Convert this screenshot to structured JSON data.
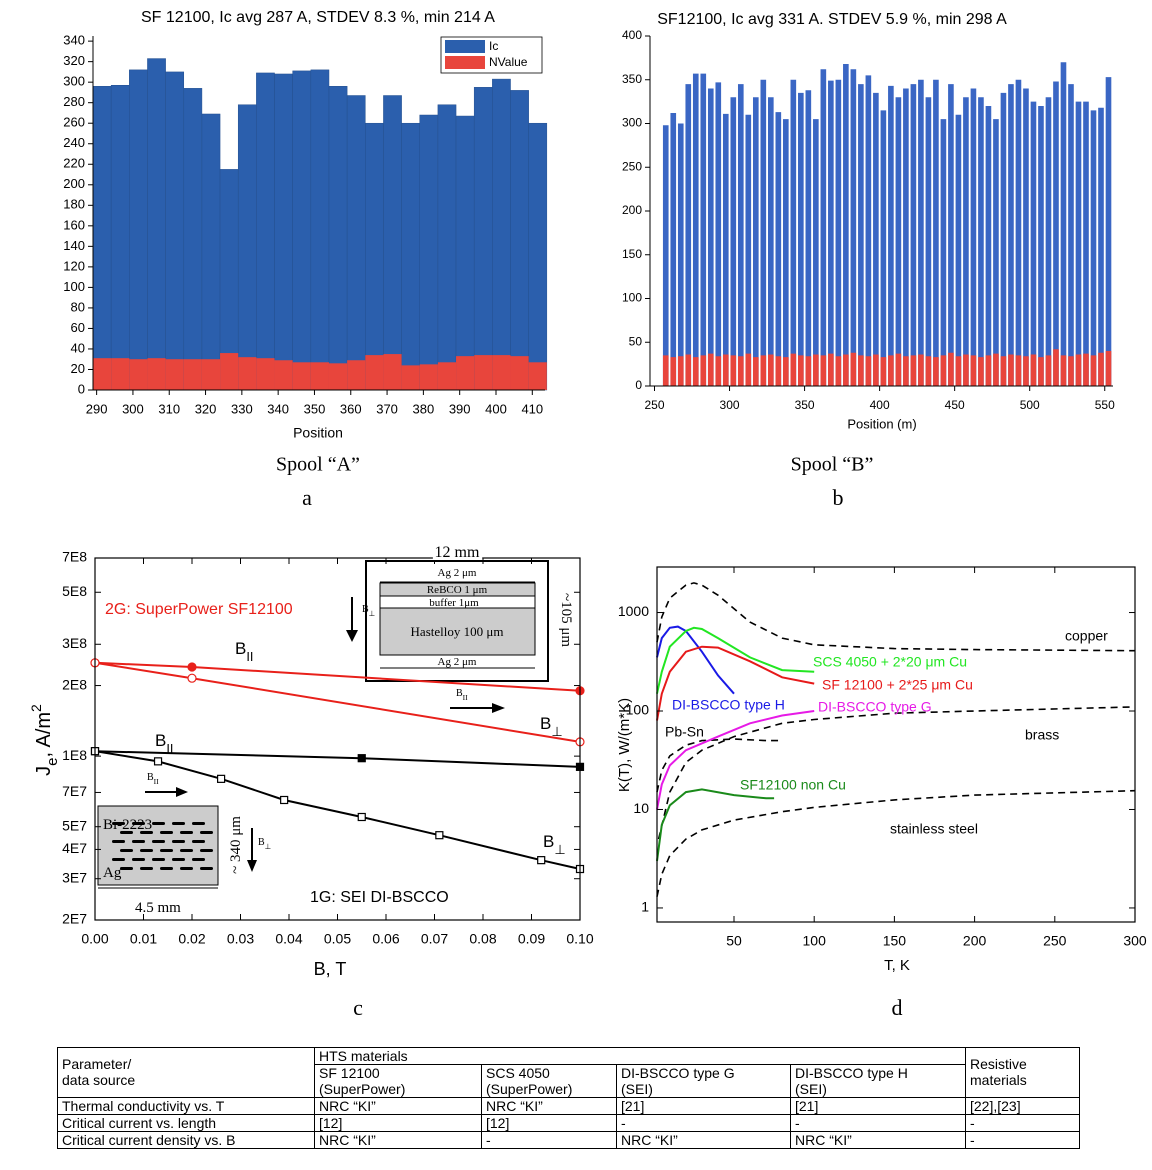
{
  "chart_data": [
    {
      "type": "bar",
      "title": "SF 12100, Ic avg 287 A, STDEV 8.3 %, min 214 A",
      "xlabel": "Position",
      "caption": "Spool “A”",
      "panel": "a",
      "x": [
        291.5,
        296.5,
        301.5,
        306.5,
        311.5,
        316.5,
        321.5,
        326.5,
        331.5,
        336.5,
        341.5,
        346.5,
        351.5,
        356.5,
        361.5,
        366.5,
        371.5,
        376.5,
        381.5,
        386.5,
        391.5,
        396.5,
        401.5,
        406.5,
        411.5
      ],
      "series": [
        {
          "name": "Ic",
          "color": "#2b5fad",
          "values": [
            296,
            297,
            312,
            323,
            310,
            294,
            269,
            215,
            278,
            309,
            308,
            311,
            312,
            296,
            287,
            260,
            287,
            260,
            268,
            278,
            267,
            295,
            303,
            292,
            260
          ]
        },
        {
          "name": "NValue",
          "color": "#e8453c",
          "values": [
            31,
            31,
            30,
            31,
            30,
            30,
            30,
            36,
            32,
            31,
            29,
            27,
            27,
            26,
            29,
            34,
            35,
            24,
            25,
            27,
            33,
            34,
            34,
            33,
            27
          ]
        }
      ],
      "xlim": [
        289,
        413.5
      ],
      "ylim": [
        0,
        345
      ],
      "xticks": [
        290,
        300,
        310,
        320,
        330,
        340,
        350,
        360,
        370,
        380,
        390,
        400,
        410
      ],
      "yticks": [
        0,
        20,
        40,
        60,
        80,
        100,
        120,
        140,
        160,
        180,
        200,
        220,
        240,
        260,
        280,
        300,
        320,
        340
      ],
      "legend": "upper right"
    },
    {
      "type": "bar",
      "title": "SF12100, Ic avg 331 A. STDEV 5.9 %, min 298 A",
      "xlabel": "Position (m)",
      "caption": "Spool “B”",
      "panel": "b",
      "x": [
        257.5,
        262.5,
        267.5,
        272.5,
        277.5,
        282.5,
        287.5,
        292.5,
        297.5,
        302.5,
        307.5,
        312.5,
        317.5,
        322.5,
        327.5,
        332.5,
        337.5,
        342.5,
        347.5,
        352.5,
        357.5,
        362.5,
        367.5,
        372.5,
        377.5,
        382.5,
        387.5,
        392.5,
        397.5,
        402.5,
        407.5,
        412.5,
        417.5,
        422.5,
        427.5,
        432.5,
        437.5,
        442.5,
        447.5,
        452.5,
        457.5,
        462.5,
        467.5,
        472.5,
        477.5,
        482.5,
        487.5,
        492.5,
        497.5,
        502.5,
        507.5,
        512.5,
        517.5,
        522.5,
        527.5,
        532.5,
        537.5,
        542.5,
        547.5,
        552.5
      ],
      "series": [
        {
          "color": "#3a66c4",
          "values": [
            298,
            312,
            300,
            345,
            357,
            357,
            340,
            347,
            311,
            330,
            345,
            310,
            330,
            350,
            330,
            313,
            305,
            350,
            335,
            338,
            305,
            362,
            349,
            350,
            368,
            362,
            345,
            355,
            335,
            315,
            343,
            330,
            340,
            345,
            350,
            330,
            350,
            305,
            345,
            310,
            330,
            340,
            330,
            320,
            305,
            335,
            345,
            350,
            340,
            325,
            320,
            330,
            348,
            370,
            345,
            325,
            325,
            315,
            318,
            353
          ]
        },
        {
          "color": "#e8453c",
          "values": [
            35,
            33,
            34,
            36,
            33,
            35,
            37,
            34,
            36,
            35,
            34,
            37,
            33,
            35,
            36,
            34,
            33,
            37,
            35,
            34,
            36,
            35,
            37,
            34,
            36,
            38,
            35,
            34,
            36,
            33,
            35,
            37,
            34,
            35,
            36,
            34,
            33,
            35,
            38,
            34,
            36,
            35,
            33,
            35,
            37,
            34,
            36,
            35,
            34,
            36,
            33,
            35,
            42,
            35,
            34,
            36,
            37,
            35,
            38,
            40
          ]
        }
      ],
      "xlim": [
        247,
        555.5
      ],
      "ylim": [
        0,
        400
      ],
      "xticks": [
        250,
        300,
        350,
        400,
        450,
        500,
        550
      ],
      "yticks": [
        0,
        50,
        100,
        150,
        200,
        250,
        300,
        350,
        400
      ]
    },
    {
      "type": "line",
      "xlabel": "B, T",
      "ylabel": {
        "text": "J",
        "sub": "e",
        "text2": ", A/m",
        "sup": "2"
      },
      "panel": "c",
      "ylog": true,
      "xlim": [
        0,
        0.1
      ],
      "ylim": [
        20000000,
        700000000
      ],
      "xticks": [
        {
          "value": 0,
          "label": "0.00"
        },
        {
          "value": 0.01,
          "label": "0.01"
        },
        {
          "value": 0.02,
          "label": "0.02"
        },
        {
          "value": 0.03,
          "label": "0.03"
        },
        {
          "value": 0.04,
          "label": "0.04"
        },
        {
          "value": 0.05,
          "label": "0.05"
        },
        {
          "value": 0.06,
          "label": "0.06"
        },
        {
          "value": 0.07,
          "label": "0.07"
        },
        {
          "value": 0.08,
          "label": "0.08"
        },
        {
          "value": 0.09,
          "label": "0.09"
        },
        {
          "value": 0.1,
          "label": "0.10"
        }
      ],
      "yticks": [
        {
          "value": 700000000,
          "label": "7E8"
        },
        {
          "value": 500000000,
          "label": "5E8"
        },
        {
          "value": 300000000,
          "label": "3E8"
        },
        {
          "value": 200000000,
          "label": "2E8"
        },
        {
          "value": 100000000,
          "label": "1E8"
        },
        {
          "value": 70000000,
          "label": "7E7"
        },
        {
          "value": 50000000,
          "label": "5E7"
        },
        {
          "value": 40000000,
          "label": "4E7"
        },
        {
          "value": 30000000,
          "label": "3E7"
        },
        {
          "value": 20000000,
          "label": "2E7"
        }
      ],
      "series": [
        {
          "color": "#e8201a",
          "marker": "circle",
          "marker_fill": "filled",
          "x": [
            0,
            0.02,
            0.1
          ],
          "values": [
            250000000,
            240000000,
            190000000
          ]
        },
        {
          "color": "#e8201a",
          "marker": "circle",
          "marker_fill": "open",
          "x": [
            0,
            0.02,
            0.1
          ],
          "values": [
            250000000,
            215000000,
            115000000
          ]
        },
        {
          "color": "#000000",
          "marker": "square",
          "marker_fill": "filled",
          "x": [
            0,
            0.055,
            0.1
          ],
          "values": [
            105000000,
            98000000,
            90000000
          ]
        },
        {
          "color": "#000000",
          "marker": "square",
          "marker_fill": "open",
          "x": [
            0,
            0.013,
            0.026,
            0.039,
            0.055,
            0.071,
            0.092,
            0.1
          ],
          "values": [
            105000000,
            95000000,
            80000000,
            65000000,
            55000000,
            46000000,
            36000000,
            33000000
          ]
        }
      ],
      "annotations": [
        {
          "text": "2G: SuperPower SF12100",
          "color": "#e8201a"
        },
        {
          "text": "B",
          "sub": "II"
        },
        {
          "text": "B",
          "sub": "⊥"
        },
        {
          "text": "B",
          "sub": "II"
        },
        {
          "text": "B",
          "sub": "⊥"
        },
        {
          "text": "1G: SEI  DI-BSCCO"
        },
        {
          "text": "12 mm"
        },
        {
          "text": "Ag 2 μm"
        },
        {
          "text": "ReBCO 1 μm"
        },
        {
          "text": "buffer  1μm"
        },
        {
          "text": "Hastelloy 100 μm"
        },
        {
          "text": "Ag 2 μm"
        },
        {
          "text": "~105 μm"
        },
        {
          "text": "B",
          "sub": "⊥"
        },
        {
          "text": "B",
          "sub": "II"
        },
        {
          "text": "Bi-2223"
        },
        {
          "text": "Ag"
        },
        {
          "text": "4.5 mm"
        },
        {
          "text": "~ 340 μm"
        },
        {
          "text": "B",
          "sub": "⊥"
        },
        {
          "text": "B",
          "sub": "II"
        }
      ]
    },
    {
      "type": "line",
      "xlabel": "T, K",
      "ylabel": "K(T), W/(m*K)",
      "panel": "d",
      "ylog": true,
      "xlim": [
        2,
        300
      ],
      "ylim": [
        0.72,
        2900
      ],
      "xticks": [
        50,
        100,
        150,
        200,
        250,
        300
      ],
      "yticks": [
        1,
        10,
        100,
        1000
      ],
      "series": [
        {
          "name": "copper",
          "color": "#000000",
          "linestyle": "dashed",
          "x": [
            2,
            5,
            10,
            20,
            25,
            30,
            40,
            60,
            80,
            100,
            150,
            200,
            300
          ],
          "values": [
            500,
            900,
            1400,
            1900,
            2000,
            1900,
            1500,
            800,
            550,
            470,
            430,
            420,
            410
          ]
        },
        {
          "name": "brass",
          "color": "#000000",
          "linestyle": "dashed",
          "x": [
            3,
            10,
            20,
            30,
            50,
            80,
            100,
            150,
            200,
            300
          ],
          "values": [
            5,
            15,
            30,
            40,
            55,
            75,
            82,
            95,
            100,
            110
          ]
        },
        {
          "name": "stainless steel",
          "color": "#000000",
          "linestyle": "dashed",
          "x": [
            2,
            5,
            10,
            20,
            30,
            50,
            80,
            100,
            150,
            200,
            300
          ],
          "values": [
            1.3,
            2.2,
            3.4,
            5,
            6.2,
            7.8,
            9.5,
            10.5,
            12.5,
            14,
            15.5
          ]
        },
        {
          "name": "Pb-Sn",
          "color": "#000000",
          "linestyle": "dashed",
          "x": [
            2,
            5,
            10,
            20,
            30,
            50,
            70,
            80
          ],
          "values": [
            15,
            25,
            35,
            45,
            50,
            52,
            50,
            50
          ]
        },
        {
          "name": "DI-BSCCO type H",
          "color": "#1a1ae6",
          "linestyle": "solid",
          "x": [
            2,
            5,
            10,
            15,
            20,
            30,
            40,
            50
          ],
          "values": [
            350,
            550,
            700,
            720,
            650,
            400,
            230,
            150
          ]
        },
        {
          "name": "SCS 4050 + 2*20 μm Cu",
          "color": "#22e622",
          "linestyle": "solid",
          "x": [
            2,
            5,
            10,
            20,
            25,
            30,
            40,
            60,
            80,
            100
          ],
          "values": [
            150,
            250,
            450,
            650,
            700,
            680,
            550,
            350,
            260,
            250
          ]
        },
        {
          "name": "SF 12100 + 2*25 μm Cu",
          "color": "#e61a1a",
          "linestyle": "solid",
          "x": [
            2,
            5,
            10,
            20,
            30,
            40,
            60,
            80,
            100
          ],
          "values": [
            80,
            150,
            250,
            400,
            450,
            440,
            320,
            220,
            190
          ]
        },
        {
          "name": "DI-BSCCO type G",
          "color": "#e61ae6",
          "linestyle": "solid",
          "x": [
            2,
            5,
            10,
            20,
            40,
            60,
            80,
            100
          ],
          "values": [
            10,
            18,
            28,
            40,
            55,
            75,
            90,
            100
          ]
        },
        {
          "name": "SF12100 non Cu",
          "color": "#1a8a1a",
          "linestyle": "solid",
          "x": [
            2,
            5,
            10,
            20,
            30,
            50,
            70,
            75
          ],
          "values": [
            3,
            7,
            11,
            15,
            16,
            14,
            13,
            13
          ]
        }
      ]
    }
  ],
  "table": {
    "header": [
      "Parameter/\ndata source",
      "HTS materials",
      "Resistive\nmaterials"
    ],
    "subheader": [
      "SF 12100\n(SuperPower)",
      "SCS 4050\n (SuperPower)",
      "DI-BSCCO type G\n(SEI)",
      "DI-BSCCO type H\n(SEI)"
    ],
    "rows": [
      [
        "Thermal conductivity vs. T",
        "NRC “KI”",
        "NRC “KI”",
        "[21]",
        "[21]",
        "[22],[23]"
      ],
      [
        "Critical current vs. length",
        "[12]",
        "[12]",
        "-",
        "-",
        "-"
      ],
      [
        "Critical current  density vs. B",
        "NRC “KI”",
        "-",
        "NRC “KI”",
        "NRC “KI”",
        "-"
      ]
    ]
  }
}
